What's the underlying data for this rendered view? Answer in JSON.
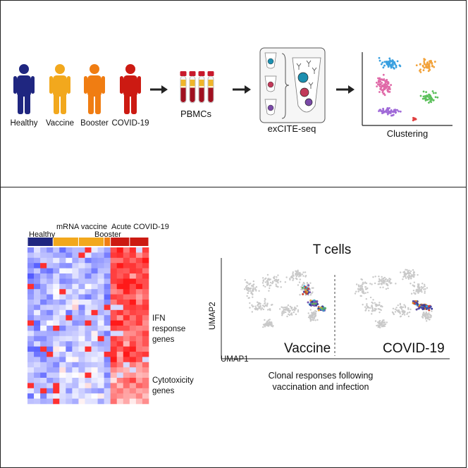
{
  "workflow": {
    "groups": [
      {
        "label": "Healthy",
        "color": "#1f2680"
      },
      {
        "label": "Vaccine",
        "color": "#f2a81d"
      },
      {
        "label": "Booster",
        "color": "#f07d12"
      },
      {
        "label": "COVID-19",
        "color": "#cc1a12"
      }
    ],
    "pbmc_label": "PBMCs",
    "excite_label": "exCITE-seq",
    "clustering_label": "Clustering",
    "cluster_colors": [
      "#3aa0e0",
      "#e06aa8",
      "#f2a23a",
      "#5cc05c",
      "#a06ad8",
      "#e04040"
    ]
  },
  "heatmap": {
    "group_labels": {
      "healthy": "Healthy",
      "mrna_vaccine": "mRNA vaccine",
      "booster": "Booster",
      "acute_covid": "Acute COVID-19"
    },
    "bar_colors": {
      "healthy": "#1f2680",
      "vaccine": "#f2a81d",
      "booster": "#f07d12",
      "covid": "#cc1a12"
    },
    "gene_labels": {
      "ifn_line1": "IFN",
      "ifn_line2": "response",
      "ifn_line3": "genes",
      "cyto_line1": "Cytotoxicity",
      "cyto_line2": "genes"
    }
  },
  "umap": {
    "title": "T cells",
    "xlabel": "UMAP1",
    "ylabel": "UMAP2",
    "left_label": "Vaccine",
    "right_label": "COVID-19",
    "caption_line1": "Clonal responses following",
    "caption_line2": "vaccination and infection"
  }
}
